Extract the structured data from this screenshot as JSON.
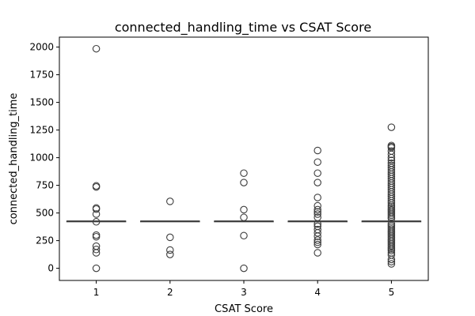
{
  "chart_data": {
    "type": "box",
    "title": "connected_handling_time vs CSAT Score",
    "xlabel": "CSAT Score",
    "ylabel": "connected_handling_time",
    "categories": [
      "1",
      "2",
      "3",
      "4",
      "5"
    ],
    "ylim": [
      -110,
      2090
    ],
    "yticks": [
      0,
      250,
      500,
      750,
      1000,
      1250,
      1500,
      1750,
      2000
    ],
    "grid": false,
    "box_color": "#3d6fa3",
    "outlier_color": "#3d3d3d",
    "boxes": [
      {
        "category": "1",
        "median": 427,
        "q1": 427,
        "q3": 427,
        "whisker_low": 427,
        "whisker_high": 427,
        "outliers": [
          0,
          140,
          170,
          200,
          285,
          300,
          420,
          490,
          535,
          545,
          735,
          745,
          1985
        ]
      },
      {
        "category": "2",
        "median": 427,
        "q1": 427,
        "q3": 427,
        "whisker_low": 427,
        "whisker_high": 427,
        "outliers": [
          125,
          165,
          280,
          605
        ]
      },
      {
        "category": "3",
        "median": 427,
        "q1": 427,
        "q3": 427,
        "whisker_low": 427,
        "whisker_high": 427,
        "outliers": [
          0,
          295,
          460,
          530,
          775,
          860
        ]
      },
      {
        "category": "4",
        "median": 427,
        "q1": 427,
        "q3": 427,
        "whisker_low": 427,
        "whisker_high": 427,
        "outliers": [
          140,
          215,
          235,
          255,
          290,
          320,
          350,
          380,
          400,
          460,
          490,
          510,
          530,
          565,
          640,
          775,
          860,
          960,
          1065
        ]
      },
      {
        "category": "5",
        "median": 427,
        "q1": 427,
        "q3": 427,
        "whisker_low": 427,
        "whisker_high": 427,
        "outliers": [
          40,
          60,
          80,
          120,
          140,
          160,
          175,
          190,
          205,
          220,
          235,
          250,
          265,
          280,
          295,
          310,
          325,
          340,
          355,
          370,
          385,
          400,
          450,
          465,
          480,
          495,
          510,
          525,
          540,
          555,
          570,
          590,
          610,
          630,
          650,
          670,
          690,
          710,
          730,
          750,
          770,
          790,
          810,
          830,
          850,
          870,
          890,
          910,
          930,
          950,
          975,
          1000,
          1030,
          1060,
          1090,
          1100,
          1110,
          1275
        ]
      }
    ]
  }
}
